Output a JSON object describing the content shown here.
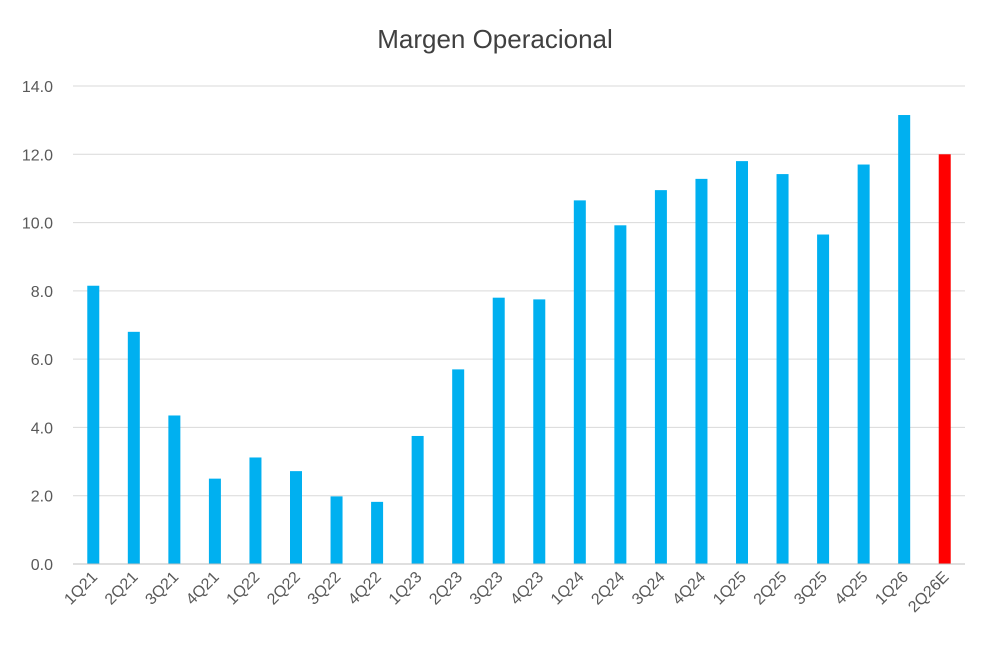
{
  "chart_data": {
    "type": "bar",
    "title": "Margen Operacional",
    "xlabel": "",
    "ylabel": "",
    "ylim": [
      0,
      14
    ],
    "yticks": [
      "0.0",
      "2.0",
      "4.0",
      "6.0",
      "8.0",
      "10.0",
      "12.0",
      "14.0"
    ],
    "grid": true,
    "legend": "none",
    "categories": [
      "1Q21",
      "2Q21",
      "3Q21",
      "4Q21",
      "1Q22",
      "2Q22",
      "3Q22",
      "4Q22",
      "1Q23",
      "2Q23",
      "3Q23",
      "4Q23",
      "1Q24",
      "2Q24",
      "3Q24",
      "4Q24",
      "1Q25",
      "2Q25",
      "3Q25",
      "4Q25",
      "1Q26",
      "2Q26E"
    ],
    "values": [
      8.15,
      6.8,
      4.35,
      2.5,
      3.12,
      2.72,
      1.98,
      1.82,
      3.75,
      5.7,
      7.8,
      7.75,
      10.65,
      9.92,
      10.95,
      11.28,
      11.8,
      11.42,
      9.65,
      11.7,
      13.15,
      12.0
    ],
    "colors": {
      "actual": "#00b0f0",
      "estimate": "#ff0000"
    },
    "estimate_categories": [
      "2Q26E"
    ]
  }
}
